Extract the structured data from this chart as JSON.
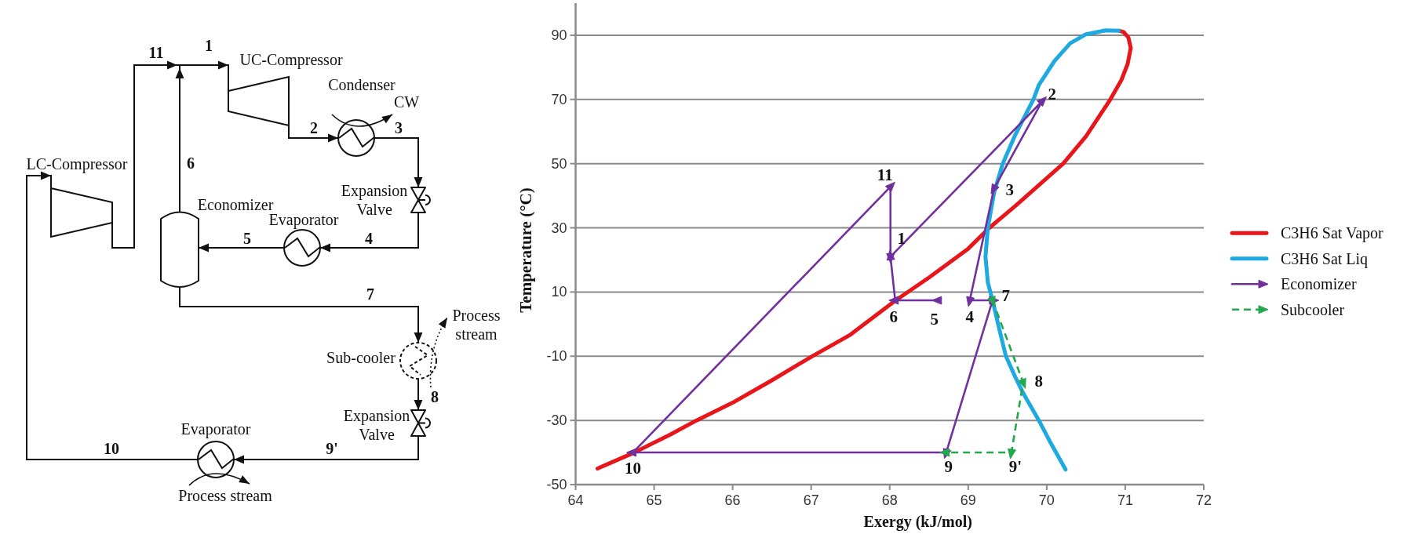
{
  "chart_data": [
    {
      "type": "other",
      "annotations": [
        "11",
        "1",
        "UC-Compressor",
        "Condenser",
        "CW",
        "2",
        "3",
        "LC-Compressor",
        "6",
        "Expansion Valve",
        "Economizer",
        "Evaporator",
        "5",
        "4",
        "7",
        "Process stream",
        "Sub-cooler",
        "8",
        "Expansion Valve",
        "9'",
        "10",
        "Evaporator",
        "Process stream"
      ]
    },
    {
      "type": "line",
      "xlabel": "Exergy (kJ/mol)",
      "ylabel": "Temperature (°C)",
      "xlim": [
        64,
        72
      ],
      "xticks": [
        64,
        65,
        66,
        67,
        68,
        69,
        70,
        71,
        72
      ],
      "ylim": [
        -50,
        100
      ],
      "yticks": [
        -50,
        -30,
        -10,
        10,
        30,
        50,
        70,
        90
      ],
      "grid": "y",
      "legend": "right",
      "series": [
        {
          "name": "C3H6 Sat Vapor",
          "color": "#e8151b",
          "x": [
            64.28,
            64.73,
            65.2,
            65.54,
            66.0,
            66.5,
            67.0,
            67.5,
            68.07,
            68.5,
            69.0,
            69.27,
            69.6,
            69.9,
            70.21,
            70.5,
            70.81,
            70.95,
            71.03,
            71.07,
            71.04,
            70.98,
            70.92
          ],
          "values": [
            -45,
            -40.2,
            -34.5,
            -30,
            -24.5,
            -17.5,
            -10.2,
            -3.3,
            7.3,
            14.5,
            23.5,
            30,
            36.8,
            43.3,
            50,
            58.5,
            70,
            76,
            81,
            86,
            89.3,
            91,
            91.4
          ]
        },
        {
          "name": "C3H6 Sat Liq",
          "color": "#1fa9e1",
          "x": [
            70.92,
            70.75,
            70.5,
            70.3,
            70.1,
            69.9,
            69.83,
            69.6,
            69.44,
            69.33,
            69.25,
            69.22,
            69.25,
            69.31,
            69.4,
            69.48,
            69.6,
            69.7,
            69.9,
            70.05,
            70.24
          ],
          "values": [
            91.4,
            91.5,
            90.3,
            87.5,
            82,
            74.5,
            70,
            59,
            50,
            41,
            30,
            21,
            13,
            7.4,
            -2,
            -10,
            -16.5,
            -21.5,
            -30,
            -37,
            -45.3
          ]
        },
        {
          "name": "Economizer",
          "color": "#7030a0",
          "marker": "triangle",
          "x": [
            68.62,
            68.07,
            68.01,
            69.94,
            69.33,
            69.02,
            69.31,
            68.72,
            64.73,
            68.01,
            68.01
          ],
          "values": [
            7.4,
            7.4,
            21,
            69.4,
            42.3,
            7.4,
            7.4,
            -40,
            -40,
            42.8,
            21
          ]
        },
        {
          "name": "Subcooler",
          "color": "#22a84c",
          "marker": "triangle",
          "line_style": "dashed",
          "x": [
            69.31,
            69.7,
            69.55,
            68.72
          ],
          "values": [
            7.4,
            -18.2,
            -40,
            -40
          ]
        }
      ],
      "annotations": [
        {
          "text": "1",
          "x": 68.01,
          "y": 21
        },
        {
          "text": "2",
          "x": 69.94,
          "y": 69.4
        },
        {
          "text": "3",
          "x": 69.33,
          "y": 42.3
        },
        {
          "text": "4",
          "x": 69.02,
          "y": 7.4
        },
        {
          "text": "5",
          "x": 68.62,
          "y": 7.4
        },
        {
          "text": "6",
          "x": 68.07,
          "y": 7.4
        },
        {
          "text": "7",
          "x": 69.31,
          "y": 7.4
        },
        {
          "text": "8",
          "x": 69.7,
          "y": -18.2
        },
        {
          "text": "9",
          "x": 68.72,
          "y": -40
        },
        {
          "text": "9'",
          "x": 69.55,
          "y": -40
        },
        {
          "text": "10",
          "x": 64.73,
          "y": -40
        },
        {
          "text": "11",
          "x": 68.01,
          "y": 42.8
        }
      ]
    }
  ]
}
